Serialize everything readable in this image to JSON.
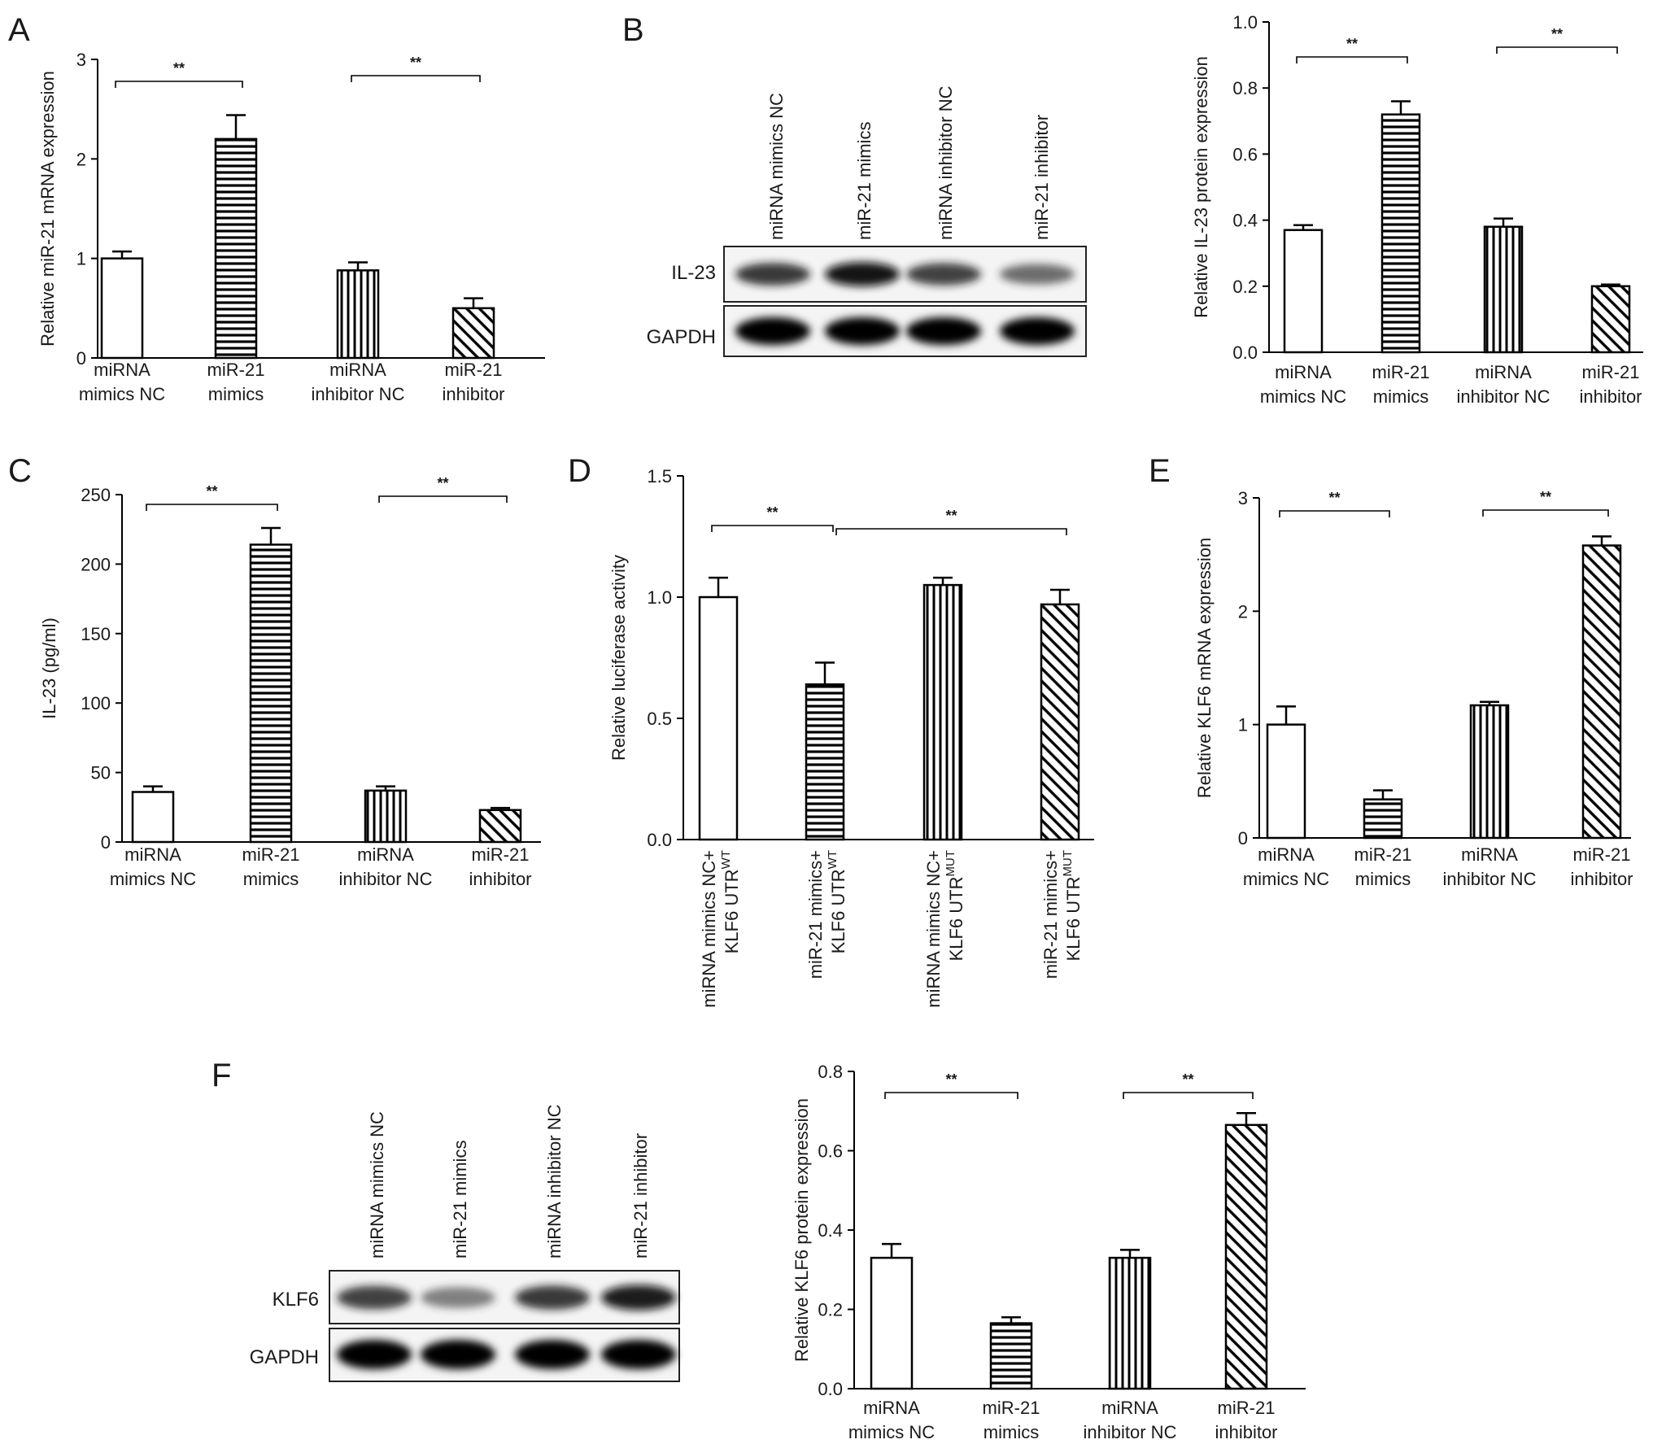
{
  "panels": [
    {
      "letter": "A"
    },
    {
      "letter": "B"
    },
    {
      "letter": "C"
    },
    {
      "letter": "D"
    },
    {
      "letter": "E"
    },
    {
      "letter": "F"
    }
  ],
  "blots": [
    {
      "lanes": [
        "miRNA mimics NC",
        "miR-21 mimics",
        "miRNA inhibitor NC",
        "miR-21 inhibitor"
      ],
      "rows": [
        {
          "label": "IL-23",
          "intensity": [
            0.75,
            0.95,
            0.7,
            0.45
          ]
        },
        {
          "label": "GAPDH",
          "intensity": [
            1,
            1,
            1,
            1
          ]
        }
      ]
    },
    {
      "lanes": [
        "miRNA mimics NC",
        "miR-21 mimics",
        "miRNA inhibitor NC",
        "miR-21 inhibitor"
      ],
      "rows": [
        {
          "label": "KLF6",
          "intensity": [
            0.7,
            0.35,
            0.75,
            0.9
          ]
        },
        {
          "label": "GAPDH",
          "intensity": [
            1,
            1,
            1,
            1
          ]
        }
      ]
    }
  ],
  "chart_data": [
    {
      "type": "bar",
      "panel": "A",
      "ylabel": "Relative miR-21 mRNA expression",
      "ylim": [
        0,
        3
      ],
      "yticks": [
        "0",
        "1",
        "2",
        "3"
      ],
      "categories": [
        [
          "miRNA",
          "mimics NC"
        ],
        [
          "miR-21",
          "mimics"
        ],
        [
          "miRNA",
          "inhibitor NC"
        ],
        [
          "miR-21",
          "inhibitor"
        ]
      ],
      "values": [
        1.0,
        2.2,
        0.88,
        0.5
      ],
      "errors": [
        0.07,
        0.24,
        0.08,
        0.1
      ],
      "patterns": [
        "none",
        "hlines",
        "vlines",
        "diag"
      ],
      "significance": [
        {
          "from": 0,
          "to": 1,
          "label": "**"
        },
        {
          "from": 2,
          "to": 3,
          "label": "**"
        }
      ]
    },
    {
      "type": "bar",
      "panel": "B",
      "ylabel": "Relative IL-23 protein expression",
      "ylim": [
        0,
        1.0
      ],
      "yticks": [
        "0.0",
        "0.2",
        "0.4",
        "0.6",
        "0.8",
        "1.0"
      ],
      "categories": [
        [
          "miRNA",
          "mimics NC"
        ],
        [
          "miR-21",
          "mimics"
        ],
        [
          "miRNA",
          "inhibitor NC"
        ],
        [
          "miR-21",
          "inhibitor"
        ]
      ],
      "values": [
        0.37,
        0.72,
        0.38,
        0.2
      ],
      "errors": [
        0.015,
        0.04,
        0.025,
        0.005
      ],
      "patterns": [
        "none",
        "hlines",
        "vlines",
        "diag"
      ],
      "significance": [
        {
          "from": 0,
          "to": 1,
          "label": "**"
        },
        {
          "from": 2,
          "to": 3,
          "label": "**"
        }
      ]
    },
    {
      "type": "bar",
      "panel": "C",
      "ylabel": "IL-23 (pg/ml)",
      "ylim": [
        0,
        250
      ],
      "yticks": [
        "0",
        "50",
        "100",
        "150",
        "200",
        "250"
      ],
      "categories": [
        [
          "miRNA",
          "mimics NC"
        ],
        [
          "miR-21",
          "mimics"
        ],
        [
          "miRNA",
          "inhibitor NC"
        ],
        [
          "miR-21",
          "inhibitor"
        ]
      ],
      "values": [
        36,
        214,
        37,
        23
      ],
      "errors": [
        4,
        12,
        3,
        1.5
      ],
      "patterns": [
        "none",
        "hlines",
        "vlines",
        "diag"
      ],
      "significance": [
        {
          "from": 0,
          "to": 1,
          "label": "**"
        },
        {
          "from": 2,
          "to": 3,
          "label": "**"
        }
      ]
    },
    {
      "type": "bar",
      "panel": "D",
      "ylabel": "Relative luciferase activity",
      "ylim": [
        0,
        1.5
      ],
      "yticks": [
        "0.0",
        "0.5",
        "1.0",
        "1.5"
      ],
      "categories": [
        {
          "l1": "miRNA mimics NC+",
          "l2": "KLF6 UTR",
          "sup": "WT"
        },
        {
          "l1": "miR-21 mimics+",
          "l2": "KLF6 UTR",
          "sup": "WT"
        },
        {
          "l1": "miRNA mimics NC+",
          "l2": "KLF6 UTR",
          "sup": "MUT"
        },
        {
          "l1": "miR-21 mimics+",
          "l2": "KLF6 UTR",
          "sup": "MUT"
        }
      ],
      "values": [
        1.0,
        0.64,
        1.05,
        0.97
      ],
      "errors": [
        0.08,
        0.09,
        0.03,
        0.06
      ],
      "patterns": [
        "none",
        "hlines",
        "vlines",
        "diag"
      ],
      "significance": [
        {
          "from": 0,
          "to": 1,
          "label": "**"
        },
        {
          "from": 1,
          "to": 3,
          "label": "**"
        }
      ]
    },
    {
      "type": "bar",
      "panel": "E",
      "ylabel": "Relative KLF6 mRNA expression",
      "ylim": [
        0,
        3
      ],
      "yticks": [
        "0",
        "1",
        "2",
        "3"
      ],
      "categories": [
        [
          "miRNA",
          "mimics NC"
        ],
        [
          "miR-21",
          "mimics"
        ],
        [
          "miRNA",
          "inhibitor NC"
        ],
        [
          "miR-21",
          "inhibitor"
        ]
      ],
      "values": [
        1.0,
        0.34,
        1.17,
        2.58
      ],
      "errors": [
        0.16,
        0.08,
        0.03,
        0.08
      ],
      "patterns": [
        "none",
        "hlines",
        "vlines",
        "diag"
      ],
      "significance": [
        {
          "from": 0,
          "to": 1,
          "label": "**"
        },
        {
          "from": 2,
          "to": 3,
          "label": "**"
        }
      ]
    },
    {
      "type": "bar",
      "panel": "F",
      "ylabel": "Relative KLF6 protein expression",
      "ylim": [
        0,
        0.8
      ],
      "yticks": [
        "0.0",
        "0.2",
        "0.4",
        "0.6",
        "0.8"
      ],
      "categories": [
        [
          "miRNA",
          "mimics NC"
        ],
        [
          "miR-21",
          "mimics"
        ],
        [
          "miRNA",
          "inhibitor NC"
        ],
        [
          "miR-21",
          "inhibitor"
        ]
      ],
      "values": [
        0.33,
        0.165,
        0.33,
        0.665
      ],
      "errors": [
        0.035,
        0.015,
        0.02,
        0.03
      ],
      "patterns": [
        "none",
        "hlines",
        "vlines",
        "diag"
      ],
      "significance": [
        {
          "from": 0,
          "to": 1,
          "label": "**"
        },
        {
          "from": 2,
          "to": 3,
          "label": "**"
        }
      ]
    }
  ]
}
